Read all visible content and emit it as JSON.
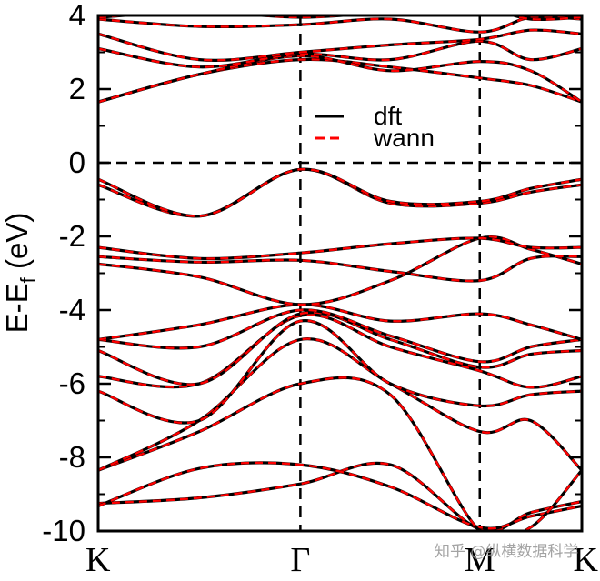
{
  "chart_data": {
    "type": "line",
    "title": "",
    "xlabel": "",
    "ylabel": "E-E_f (eV)",
    "ylabel_main": "E-E",
    "ylabel_sub": "f",
    "ylabel_unit": " (eV)",
    "ylim": [
      -10,
      4
    ],
    "yticks": [
      4,
      2,
      0,
      -2,
      -4,
      -6,
      -8,
      -10
    ],
    "ytick_labels": [
      "4",
      "2",
      "0",
      "-2",
      "-4",
      "-6",
      "-8",
      "-10"
    ],
    "xlim": [
      0,
      1
    ],
    "high_symmetry_points": [
      {
        "label": "K",
        "x": 0.0
      },
      {
        "label": "Γ",
        "x": 0.418
      },
      {
        "label": "M",
        "x": 0.789
      },
      {
        "label": "K",
        "x": 1.0
      }
    ],
    "fermi_level": 0,
    "legend": {
      "position": "upper-center",
      "entries": [
        {
          "name": "dft",
          "style": "solid",
          "color": "#000000"
        },
        {
          "name": "wann",
          "style": "dashed",
          "color": "#ff0000"
        }
      ]
    },
    "x": [
      0.0,
      0.209,
      0.418,
      0.604,
      0.789,
      0.894,
      1.0
    ],
    "series": [
      {
        "values": [
          -9.25,
          -9.1,
          -8.72,
          -8.2,
          -9.95,
          -9.5,
          -9.2
        ]
      },
      {
        "values": [
          -9.32,
          -8.3,
          -8.2,
          -8.8,
          -9.9,
          -9.6,
          -9.32
        ]
      },
      {
        "values": [
          -8.35,
          -7.3,
          -6.0,
          -6.3,
          -10.0,
          -9.9,
          -8.35
        ]
      },
      {
        "values": [
          -8.35,
          -7.0,
          -4.8,
          -6.0,
          -7.3,
          -7.0,
          -8.35
        ]
      },
      {
        "values": [
          -6.2,
          -7.0,
          -4.3,
          -6.0,
          -6.6,
          -6.3,
          -6.2
        ]
      },
      {
        "values": [
          -5.8,
          -6.0,
          -4.15,
          -5.0,
          -5.65,
          -6.1,
          -5.8
        ]
      },
      {
        "values": [
          -5.1,
          -6.0,
          -4.1,
          -4.8,
          -5.55,
          -5.2,
          -5.1
        ]
      },
      {
        "values": [
          -4.8,
          -5.0,
          -4.0,
          -4.7,
          -5.4,
          -5.0,
          -4.8
        ]
      },
      {
        "values": [
          -4.8,
          -4.4,
          -3.85,
          -4.3,
          -4.1,
          -4.4,
          -4.8
        ]
      },
      {
        "values": [
          -2.75,
          -3.1,
          -3.85,
          -3.2,
          -2.05,
          -2.35,
          -2.75
        ]
      },
      {
        "values": [
          -2.55,
          -2.7,
          -2.65,
          -2.95,
          -3.2,
          -2.6,
          -2.55
        ]
      },
      {
        "values": [
          -2.3,
          -2.6,
          -2.45,
          -2.2,
          -2.05,
          -2.3,
          -2.3
        ]
      },
      {
        "values": [
          -0.6,
          -1.45,
          -0.18,
          -1.1,
          -1.1,
          -0.8,
          -0.6
        ]
      },
      {
        "values": [
          -0.45,
          -1.45,
          -0.18,
          -1.05,
          -1.05,
          -0.7,
          -0.45
        ]
      },
      {
        "values": [
          1.65,
          2.4,
          2.8,
          2.6,
          2.3,
          2.1,
          1.65
        ]
      },
      {
        "values": [
          1.65,
          2.4,
          2.9,
          2.5,
          2.75,
          2.5,
          1.65
        ]
      },
      {
        "values": [
          3.1,
          2.6,
          2.95,
          2.8,
          3.3,
          2.8,
          3.1
        ]
      },
      {
        "values": [
          3.5,
          2.8,
          3.0,
          3.2,
          3.35,
          3.6,
          3.5
        ]
      },
      {
        "values": [
          3.9,
          3.7,
          3.75,
          3.9,
          3.55,
          3.95,
          3.9
        ]
      },
      {
        "values": [
          3.95,
          4.1,
          3.95,
          4.1,
          4.2,
          3.9,
          3.95
        ]
      }
    ]
  },
  "watermark": "知乎 @纵横数据科学"
}
